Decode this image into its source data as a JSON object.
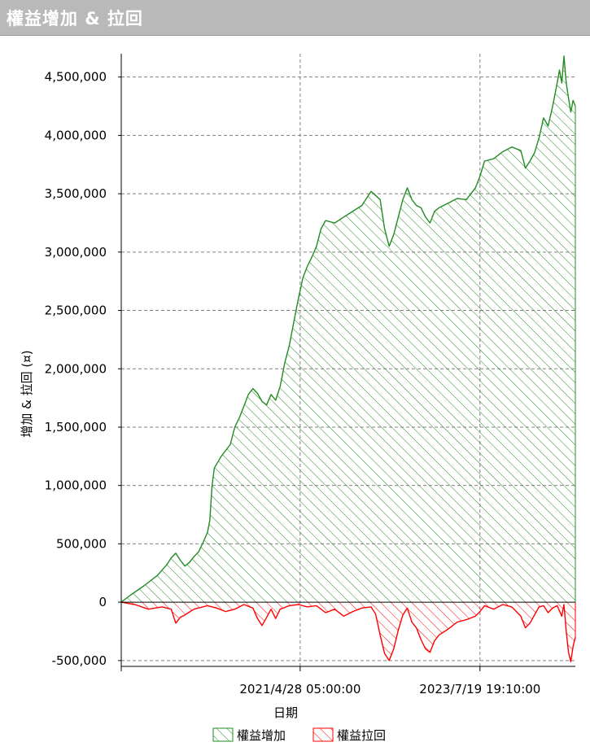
{
  "window": {
    "title": "權益增加 & 拉回"
  },
  "chart_data": {
    "type": "area",
    "ylabel": "增加 & 拉回 (¤)",
    "xlabel": "日期",
    "ylim": [
      -550000,
      4700000
    ],
    "yticks": [
      -500000,
      0,
      500000,
      1000000,
      1500000,
      2000000,
      2500000,
      3000000,
      3500000,
      4000000,
      4500000
    ],
    "ytick_labels": [
      "-500,000",
      "0",
      "500,000",
      "1,000,000",
      "1,500,000",
      "2,000,000",
      "2,500,000",
      "3,000,000",
      "3,500,000",
      "4,000,000",
      "4,500,000"
    ],
    "xlim": [
      0,
      1
    ],
    "xticks": [
      0.0,
      0.394,
      0.79
    ],
    "xtick_labels": [
      "",
      "2021/4/28 05:00:00",
      "2023/7/19 19:10:00"
    ],
    "grid": true,
    "legend_position": "bottom",
    "series": [
      {
        "name": "權益增加",
        "color": "#228b22",
        "fill": "hatched",
        "points": [
          [
            0.0,
            0
          ],
          [
            0.02,
            60000
          ],
          [
            0.05,
            140000
          ],
          [
            0.08,
            230000
          ],
          [
            0.1,
            320000
          ],
          [
            0.11,
            380000
          ],
          [
            0.12,
            420000
          ],
          [
            0.13,
            360000
          ],
          [
            0.14,
            310000
          ],
          [
            0.15,
            340000
          ],
          [
            0.16,
            390000
          ],
          [
            0.17,
            430000
          ],
          [
            0.18,
            510000
          ],
          [
            0.19,
            600000
          ],
          [
            0.195,
            700000
          ],
          [
            0.2,
            1000000
          ],
          [
            0.205,
            1150000
          ],
          [
            0.22,
            1250000
          ],
          [
            0.24,
            1350000
          ],
          [
            0.25,
            1500000
          ],
          [
            0.26,
            1580000
          ],
          [
            0.27,
            1680000
          ],
          [
            0.28,
            1780000
          ],
          [
            0.29,
            1830000
          ],
          [
            0.3,
            1790000
          ],
          [
            0.31,
            1720000
          ],
          [
            0.32,
            1690000
          ],
          [
            0.33,
            1780000
          ],
          [
            0.34,
            1730000
          ],
          [
            0.35,
            1850000
          ],
          [
            0.36,
            2050000
          ],
          [
            0.37,
            2200000
          ],
          [
            0.38,
            2400000
          ],
          [
            0.39,
            2600000
          ],
          [
            0.4,
            2780000
          ],
          [
            0.41,
            2880000
          ],
          [
            0.42,
            2960000
          ],
          [
            0.43,
            3050000
          ],
          [
            0.44,
            3200000
          ],
          [
            0.45,
            3270000
          ],
          [
            0.47,
            3250000
          ],
          [
            0.49,
            3300000
          ],
          [
            0.51,
            3350000
          ],
          [
            0.53,
            3400000
          ],
          [
            0.55,
            3520000
          ],
          [
            0.57,
            3450000
          ],
          [
            0.58,
            3200000
          ],
          [
            0.59,
            3050000
          ],
          [
            0.6,
            3150000
          ],
          [
            0.61,
            3300000
          ],
          [
            0.62,
            3450000
          ],
          [
            0.63,
            3550000
          ],
          [
            0.64,
            3450000
          ],
          [
            0.65,
            3400000
          ],
          [
            0.66,
            3380000
          ],
          [
            0.67,
            3300000
          ],
          [
            0.68,
            3250000
          ],
          [
            0.69,
            3350000
          ],
          [
            0.7,
            3380000
          ],
          [
            0.72,
            3420000
          ],
          [
            0.74,
            3460000
          ],
          [
            0.76,
            3450000
          ],
          [
            0.78,
            3550000
          ],
          [
            0.79,
            3650000
          ],
          [
            0.8,
            3780000
          ],
          [
            0.82,
            3800000
          ],
          [
            0.84,
            3860000
          ],
          [
            0.86,
            3900000
          ],
          [
            0.88,
            3870000
          ],
          [
            0.89,
            3720000
          ],
          [
            0.9,
            3780000
          ],
          [
            0.91,
            3850000
          ],
          [
            0.92,
            3980000
          ],
          [
            0.93,
            4150000
          ],
          [
            0.94,
            4080000
          ],
          [
            0.95,
            4250000
          ],
          [
            0.96,
            4450000
          ],
          [
            0.965,
            4560000
          ],
          [
            0.97,
            4450000
          ],
          [
            0.975,
            4680000
          ],
          [
            0.98,
            4450000
          ],
          [
            0.985,
            4320000
          ],
          [
            0.99,
            4200000
          ],
          [
            0.995,
            4300000
          ],
          [
            1.0,
            4250000
          ]
        ]
      },
      {
        "name": "權益拉回",
        "color": "#ff0000",
        "fill": "hatched",
        "points": [
          [
            0.0,
            0
          ],
          [
            0.03,
            -20000
          ],
          [
            0.06,
            -60000
          ],
          [
            0.09,
            -40000
          ],
          [
            0.11,
            -60000
          ],
          [
            0.12,
            -180000
          ],
          [
            0.13,
            -130000
          ],
          [
            0.14,
            -110000
          ],
          [
            0.16,
            -60000
          ],
          [
            0.19,
            -30000
          ],
          [
            0.21,
            -50000
          ],
          [
            0.23,
            -80000
          ],
          [
            0.25,
            -60000
          ],
          [
            0.27,
            -20000
          ],
          [
            0.29,
            -50000
          ],
          [
            0.3,
            -140000
          ],
          [
            0.31,
            -200000
          ],
          [
            0.32,
            -130000
          ],
          [
            0.33,
            -60000
          ],
          [
            0.34,
            -140000
          ],
          [
            0.35,
            -60000
          ],
          [
            0.37,
            -30000
          ],
          [
            0.39,
            -20000
          ],
          [
            0.41,
            -40000
          ],
          [
            0.43,
            -30000
          ],
          [
            0.45,
            -90000
          ],
          [
            0.47,
            -60000
          ],
          [
            0.49,
            -120000
          ],
          [
            0.51,
            -80000
          ],
          [
            0.53,
            -50000
          ],
          [
            0.55,
            -40000
          ],
          [
            0.56,
            -100000
          ],
          [
            0.57,
            -280000
          ],
          [
            0.58,
            -440000
          ],
          [
            0.59,
            -500000
          ],
          [
            0.6,
            -400000
          ],
          [
            0.61,
            -240000
          ],
          [
            0.62,
            -110000
          ],
          [
            0.63,
            -50000
          ],
          [
            0.64,
            -170000
          ],
          [
            0.65,
            -220000
          ],
          [
            0.66,
            -320000
          ],
          [
            0.67,
            -400000
          ],
          [
            0.68,
            -430000
          ],
          [
            0.69,
            -330000
          ],
          [
            0.7,
            -280000
          ],
          [
            0.72,
            -230000
          ],
          [
            0.74,
            -170000
          ],
          [
            0.76,
            -150000
          ],
          [
            0.78,
            -120000
          ],
          [
            0.79,
            -80000
          ],
          [
            0.8,
            -30000
          ],
          [
            0.82,
            -60000
          ],
          [
            0.84,
            -20000
          ],
          [
            0.86,
            -40000
          ],
          [
            0.88,
            -120000
          ],
          [
            0.89,
            -220000
          ],
          [
            0.9,
            -180000
          ],
          [
            0.91,
            -110000
          ],
          [
            0.92,
            -40000
          ],
          [
            0.93,
            -30000
          ],
          [
            0.94,
            -90000
          ],
          [
            0.95,
            -50000
          ],
          [
            0.96,
            -30000
          ],
          [
            0.97,
            -120000
          ],
          [
            0.975,
            -20000
          ],
          [
            0.98,
            -250000
          ],
          [
            0.985,
            -430000
          ],
          [
            0.99,
            -510000
          ],
          [
            0.995,
            -380000
          ],
          [
            1.0,
            -300000
          ]
        ]
      }
    ]
  }
}
